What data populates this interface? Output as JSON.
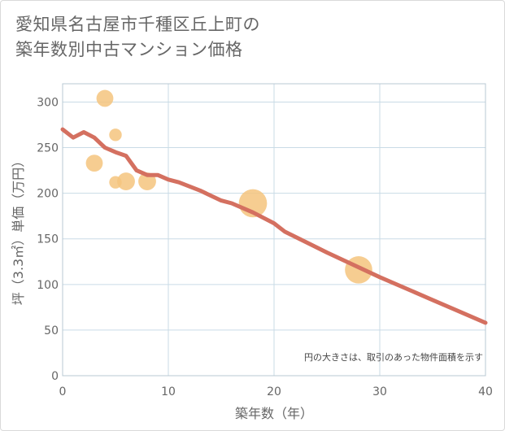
{
  "header": {
    "title_line1": "愛知県名古屋市千種区丘上町の",
    "title_line2": "築年数別中古マンション価格"
  },
  "colors": {
    "line": "#d47060",
    "bubble": "#f5c47e",
    "grid": "#c9dbe6",
    "plot_border": "#b8c8d3"
  },
  "chart_data": {
    "type": "scatter",
    "title": "愛知県名古屋市千種区丘上町の 築年数別中古マンション価格",
    "xlabel": "築年数（年）",
    "ylabel": "坪（3.3㎡）単価（万円）",
    "xlim": [
      0,
      40
    ],
    "ylim": [
      0,
      320
    ],
    "xticks": [
      0,
      10,
      20,
      30,
      40
    ],
    "yticks": [
      0,
      50,
      100,
      150,
      200,
      250,
      300
    ],
    "grid": true,
    "note": "円の大きさは、取引のあった物件面積を示す",
    "series": [
      {
        "name": "取引事例",
        "kind": "bubble",
        "points": [
          {
            "x": 4,
            "y": 304,
            "size": 3
          },
          {
            "x": 5,
            "y": 264,
            "size": 1
          },
          {
            "x": 3,
            "y": 233,
            "size": 3
          },
          {
            "x": 5,
            "y": 212,
            "size": 1
          },
          {
            "x": 6,
            "y": 213,
            "size": 3.5
          },
          {
            "x": 8,
            "y": 213,
            "size": 3.5
          },
          {
            "x": 18,
            "y": 189,
            "size": 13
          },
          {
            "x": 28,
            "y": 116,
            "size": 12
          }
        ]
      },
      {
        "name": "傾向線",
        "kind": "line",
        "points": [
          {
            "x": 0,
            "y": 270
          },
          {
            "x": 1,
            "y": 261
          },
          {
            "x": 2,
            "y": 267
          },
          {
            "x": 3,
            "y": 261
          },
          {
            "x": 4,
            "y": 250
          },
          {
            "x": 5,
            "y": 245
          },
          {
            "x": 6,
            "y": 241
          },
          {
            "x": 7,
            "y": 225
          },
          {
            "x": 8,
            "y": 220
          },
          {
            "x": 9,
            "y": 220
          },
          {
            "x": 10,
            "y": 215
          },
          {
            "x": 11,
            "y": 212
          },
          {
            "x": 13,
            "y": 203
          },
          {
            "x": 15,
            "y": 192
          },
          {
            "x": 16,
            "y": 189
          },
          {
            "x": 18,
            "y": 179
          },
          {
            "x": 20,
            "y": 167
          },
          {
            "x": 21,
            "y": 158
          },
          {
            "x": 25,
            "y": 135
          },
          {
            "x": 30,
            "y": 108
          },
          {
            "x": 35,
            "y": 83
          },
          {
            "x": 40,
            "y": 58
          }
        ]
      }
    ]
  }
}
